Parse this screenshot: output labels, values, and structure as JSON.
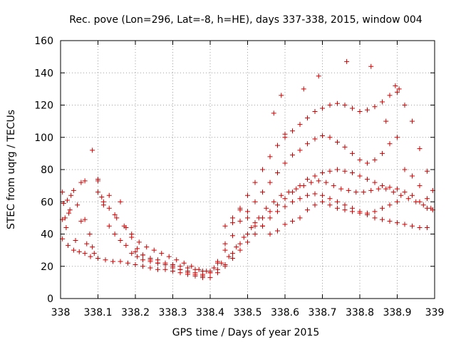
{
  "chart_data": {
    "type": "scatter",
    "title": "Rec. pove (Lon=296, Lat=-8, h=HE), days 337-338, 2015, window 004",
    "xlabel": "GPS time / Days of year 2015",
    "ylabel": "STEC from uqrg / TECUs",
    "xlim": [
      338,
      339
    ],
    "ylim": [
      0,
      160
    ],
    "xticks": [
      "338",
      "338.1",
      "338.2",
      "338.3",
      "338.4",
      "338.5",
      "338.6",
      "338.7",
      "338.8",
      "338.9",
      "339"
    ],
    "yticks": [
      "0",
      "20",
      "40",
      "60",
      "80",
      "100",
      "120",
      "140",
      "160"
    ],
    "grid": true,
    "marker": "plus",
    "color": "#cc0000",
    "x": [
      338.005,
      338.008,
      338.012,
      338.018,
      338.022,
      338.028,
      338.035,
      338.045,
      338.055,
      338.065,
      338.078,
      338.09,
      338.1,
      338.115,
      338.13,
      338.145,
      338.16,
      338.175,
      338.19,
      338.205,
      338.22,
      338.24,
      338.26,
      338.28,
      338.3,
      338.32,
      338.34,
      338.36,
      338.38,
      338.4,
      338.42,
      338.44,
      338.46,
      338.48,
      338.5,
      338.52,
      338.54,
      338.56,
      338.58,
      338.6,
      338.62,
      338.64,
      338.66,
      338.68,
      338.7,
      338.72,
      338.74,
      338.76,
      338.78,
      338.8,
      338.82,
      338.84,
      338.86,
      338.88,
      338.9,
      338.92,
      338.94,
      338.96,
      338.98,
      338.995,
      338.005,
      338.015,
      338.025,
      338.04,
      338.055,
      338.07,
      338.085,
      338.1,
      338.115,
      338.13,
      338.145,
      338.16,
      338.175,
      338.19,
      338.205,
      338.22,
      338.24,
      338.26,
      338.28,
      338.3,
      338.32,
      338.34,
      338.36,
      338.38,
      338.4,
      338.42,
      338.44,
      338.46,
      338.48,
      338.5,
      338.52,
      338.54,
      338.56,
      338.58,
      338.6,
      338.62,
      338.64,
      338.66,
      338.68,
      338.7,
      338.72,
      338.74,
      338.76,
      338.78,
      338.8,
      338.82,
      338.84,
      338.86,
      338.88,
      338.9,
      338.92,
      338.94,
      338.96,
      338.98,
      338.995,
      338.005,
      338.02,
      338.035,
      338.05,
      338.065,
      338.08,
      338.1,
      338.12,
      338.14,
      338.16,
      338.18,
      338.2,
      338.22,
      338.24,
      338.26,
      338.28,
      338.3,
      338.32,
      338.34,
      338.36,
      338.38,
      338.4,
      338.42,
      338.44,
      338.46,
      338.48,
      338.5,
      338.52,
      338.54,
      338.56,
      338.58,
      338.6,
      338.62,
      338.64,
      338.66,
      338.68,
      338.7,
      338.72,
      338.74,
      338.76,
      338.78,
      338.8,
      338.82,
      338.84,
      338.86,
      338.88,
      338.9,
      338.92,
      338.94,
      338.96,
      338.98,
      338.11,
      338.13,
      338.15,
      338.17,
      338.19,
      338.21,
      338.23,
      338.25,
      338.27,
      338.29,
      338.31,
      338.33,
      338.35,
      338.37,
      338.39,
      338.41,
      338.43,
      338.45,
      338.47,
      338.49,
      338.51,
      338.53,
      338.55,
      338.57,
      338.59,
      338.61,
      338.63,
      338.65,
      338.67,
      338.69,
      338.71,
      338.73,
      338.75,
      338.77,
      338.79,
      338.81,
      338.83,
      338.85,
      338.87,
      338.89,
      338.91,
      338.93,
      338.95,
      338.97,
      338.99,
      338.2,
      338.22,
      338.24,
      338.26,
      338.28,
      338.3,
      338.32,
      338.34,
      338.36,
      338.38,
      338.4,
      338.42,
      338.44,
      338.46,
      338.48,
      338.5,
      338.52,
      338.54,
      338.56,
      338.58,
      338.6,
      338.62,
      338.64,
      338.66,
      338.68,
      338.7,
      338.72,
      338.74,
      338.76,
      338.78,
      338.8,
      338.82,
      338.84,
      338.86,
      338.88,
      338.9,
      338.92,
      338.94,
      338.96,
      338.98,
      338.44,
      338.46,
      338.48,
      338.5,
      338.52,
      338.54,
      338.56,
      338.58,
      338.6,
      338.62,
      338.64,
      338.66,
      338.68,
      338.7,
      338.72,
      338.74,
      338.76,
      338.78,
      338.8,
      338.82,
      338.84,
      338.86,
      338.88,
      338.9,
      338.085,
      338.065,
      338.1,
      338.57,
      338.59,
      338.6,
      338.65,
      338.69,
      338.765,
      338.83,
      338.895,
      338.905,
      338.87
    ],
    "y": [
      66,
      59,
      50,
      61,
      53,
      64,
      67,
      58,
      72,
      49,
      40,
      28,
      66,
      58,
      64,
      52,
      60,
      44,
      38,
      31,
      27,
      24,
      22,
      21,
      20,
      18,
      16,
      15,
      14,
      16,
      23,
      34,
      47,
      56,
      64,
      72,
      80,
      88,
      95,
      100,
      104,
      108,
      112,
      116,
      118,
      120,
      121,
      120,
      118,
      116,
      117,
      119,
      122,
      126,
      128,
      120,
      110,
      93,
      79,
      67,
      49,
      44,
      55,
      36,
      48,
      34,
      32,
      74,
      60,
      45,
      40,
      36,
      33,
      28,
      26,
      24,
      23,
      22,
      21,
      19,
      18,
      17,
      16,
      15,
      17,
      22,
      30,
      39,
      48,
      54,
      60,
      66,
      72,
      78,
      84,
      89,
      92,
      96,
      99,
      101,
      100,
      97,
      94,
      90,
      86,
      84,
      86,
      90,
      96,
      100,
      80,
      76,
      70,
      62,
      55,
      37,
      33,
      30,
      29,
      28,
      26,
      25,
      24,
      23,
      23,
      22,
      21,
      20,
      19,
      18,
      18,
      17,
      16,
      15,
      14,
      13,
      13,
      16,
      20,
      28,
      34,
      40,
      45,
      50,
      54,
      58,
      62,
      66,
      70,
      74,
      76,
      78,
      79,
      80,
      79,
      78,
      76,
      74,
      72,
      70,
      69,
      68,
      66,
      64,
      60,
      56,
      63,
      56,
      50,
      45,
      40,
      35,
      32,
      30,
      28,
      26,
      24,
      22,
      20,
      18,
      17,
      19,
      22,
      26,
      32,
      38,
      44,
      50,
      56,
      60,
      64,
      66,
      68,
      70,
      72,
      73,
      72,
      70,
      68,
      67,
      66,
      66,
      67,
      68,
      68,
      66,
      64,
      62,
      60,
      58,
      56,
      29,
      27,
      25,
      24,
      22,
      21,
      20,
      19,
      18,
      17,
      16,
      18,
      21,
      25,
      30,
      35,
      40,
      45,
      50,
      54,
      57,
      60,
      62,
      64,
      65,
      64,
      62,
      60,
      58,
      56,
      54,
      52,
      50,
      49,
      48,
      47,
      46,
      45,
      44,
      44,
      45,
      50,
      55,
      50,
      47,
      45,
      40,
      42,
      46,
      48,
      50,
      55,
      58,
      60,
      58,
      56,
      55,
      54,
      53,
      53,
      54,
      56,
      58,
      60,
      92,
      73,
      73,
      115,
      126,
      102,
      130,
      138,
      147,
      144,
      132,
      130,
      110
    ]
  }
}
